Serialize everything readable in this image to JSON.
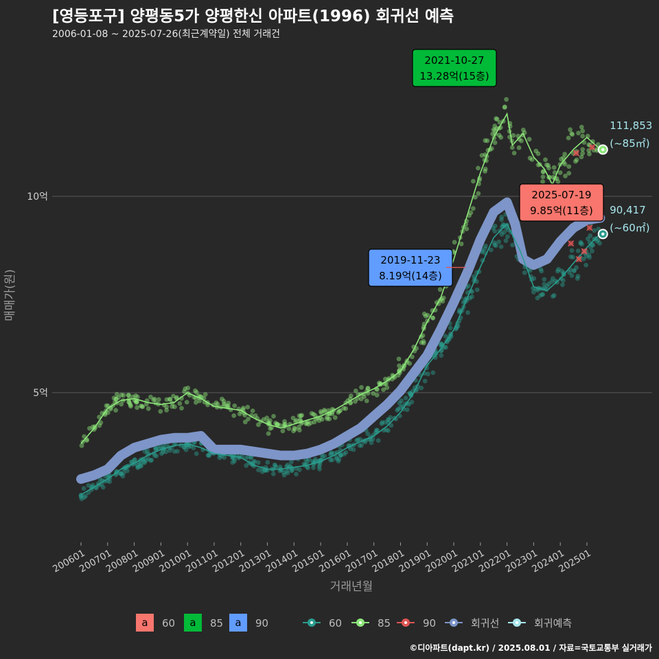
{
  "header": {
    "title": "[영등포구] 양평동5가 양평한신 아파트(1996) 회귀선 예측",
    "subtitle": "2006-01-08 ~ 2025-07-26(최근계약일) 전체 거래건"
  },
  "footer": {
    "source": "©디아파트(dapt.kr) / 2025.08.01 / 자료=국토교통부 실거래가"
  },
  "colors": {
    "background": "#282828",
    "series_60": "#2a9d8f",
    "series_85": "#8ee87a",
    "series_90": "#e05555",
    "regression": "#7d95c8",
    "forecast": "#a8e8ee",
    "label_60": "#f8766d",
    "label_85": "#00ba38",
    "label_90": "#619cff"
  },
  "chart_data": {
    "type": "scatter",
    "xlabel": "거래년월",
    "ylabel": "매매가(원)",
    "ylim": [
      1.5,
      14.2
    ],
    "xlim": [
      2005.55,
      2026.15
    ],
    "grid": true,
    "y_ticks": [
      {
        "value": 5,
        "label": "5억"
      },
      {
        "value": 10,
        "label": "10억"
      }
    ],
    "x_ticks": [
      {
        "value": 2006.0,
        "label": "200601"
      },
      {
        "value": 2007.0,
        "label": "200701"
      },
      {
        "value": 2008.0,
        "label": "200801"
      },
      {
        "value": 2009.0,
        "label": "200901"
      },
      {
        "value": 2010.0,
        "label": "201001"
      },
      {
        "value": 2011.0,
        "label": "201101"
      },
      {
        "value": 2012.0,
        "label": "201201"
      },
      {
        "value": 2013.0,
        "label": "201301"
      },
      {
        "value": 2014.0,
        "label": "201401"
      },
      {
        "value": 2015.0,
        "label": "201501"
      },
      {
        "value": 2016.0,
        "label": "201601"
      },
      {
        "value": 2017.0,
        "label": "201701"
      },
      {
        "value": 2018.0,
        "label": "201801"
      },
      {
        "value": 2019.0,
        "label": "201901"
      },
      {
        "value": 2020.0,
        "label": "202001"
      },
      {
        "value": 2021.0,
        "label": "202101"
      },
      {
        "value": 2022.0,
        "label": "202201"
      },
      {
        "value": 2023.0,
        "label": "202301"
      },
      {
        "value": 2024.0,
        "label": "202401"
      },
      {
        "value": 2025.0,
        "label": "202501"
      }
    ],
    "series": [
      {
        "name": "60",
        "line": [
          [
            2006.0,
            2.4
          ],
          [
            2006.5,
            2.6
          ],
          [
            2007.0,
            2.8
          ],
          [
            2007.5,
            3.05
          ],
          [
            2008.0,
            3.2
          ],
          [
            2008.5,
            3.4
          ],
          [
            2009.0,
            3.55
          ],
          [
            2009.5,
            3.65
          ],
          [
            2010.0,
            3.7
          ],
          [
            2010.5,
            3.6
          ],
          [
            2011.0,
            3.45
          ],
          [
            2011.5,
            3.4
          ],
          [
            2012.0,
            3.35
          ],
          [
            2012.5,
            3.15
          ],
          [
            2013.0,
            3.05
          ],
          [
            2013.5,
            3.05
          ],
          [
            2014.0,
            3.1
          ],
          [
            2014.5,
            3.15
          ],
          [
            2015.0,
            3.25
          ],
          [
            2015.5,
            3.4
          ],
          [
            2016.0,
            3.6
          ],
          [
            2016.5,
            3.75
          ],
          [
            2017.0,
            3.9
          ],
          [
            2017.5,
            4.15
          ],
          [
            2018.0,
            4.5
          ],
          [
            2018.5,
            5.0
          ],
          [
            2019.0,
            5.7
          ],
          [
            2019.5,
            6.1
          ],
          [
            2020.0,
            6.6
          ],
          [
            2020.5,
            7.4
          ],
          [
            2021.0,
            8.2
          ],
          [
            2021.5,
            8.95
          ],
          [
            2022.0,
            9.3
          ],
          [
            2022.5,
            8.6
          ],
          [
            2023.0,
            7.7
          ],
          [
            2023.5,
            7.6
          ],
          [
            2024.0,
            7.9
          ],
          [
            2024.5,
            8.3
          ],
          [
            2025.0,
            8.7
          ],
          [
            2025.5,
            9.05
          ]
        ]
      },
      {
        "name": "85",
        "line": [
          [
            2006.0,
            3.7
          ],
          [
            2006.5,
            4.1
          ],
          [
            2007.0,
            4.6
          ],
          [
            2007.5,
            4.8
          ],
          [
            2008.0,
            4.85
          ],
          [
            2008.5,
            4.75
          ],
          [
            2009.0,
            4.7
          ],
          [
            2009.5,
            4.75
          ],
          [
            2010.0,
            5.0
          ],
          [
            2010.5,
            4.85
          ],
          [
            2011.0,
            4.65
          ],
          [
            2011.5,
            4.6
          ],
          [
            2012.0,
            4.55
          ],
          [
            2012.5,
            4.35
          ],
          [
            2013.0,
            4.2
          ],
          [
            2013.5,
            4.1
          ],
          [
            2014.0,
            4.2
          ],
          [
            2014.5,
            4.3
          ],
          [
            2015.0,
            4.4
          ],
          [
            2015.5,
            4.55
          ],
          [
            2016.0,
            4.75
          ],
          [
            2016.5,
            4.95
          ],
          [
            2017.0,
            5.1
          ],
          [
            2017.5,
            5.3
          ],
          [
            2018.0,
            5.55
          ],
          [
            2018.5,
            6.1
          ],
          [
            2019.0,
            6.8
          ],
          [
            2019.5,
            7.4
          ],
          [
            2020.0,
            8.4
          ],
          [
            2020.5,
            9.5
          ],
          [
            2021.0,
            10.6
          ],
          [
            2021.5,
            11.5
          ],
          [
            2022.0,
            12.1
          ],
          [
            2022.2,
            11.3
          ],
          [
            2022.6,
            11.6
          ],
          [
            2023.0,
            11.0
          ],
          [
            2023.4,
            10.7
          ],
          [
            2023.7,
            10.3
          ],
          [
            2024.0,
            10.8
          ],
          [
            2024.5,
            11.2
          ],
          [
            2025.0,
            11.5
          ],
          [
            2025.5,
            11.2
          ]
        ]
      },
      {
        "name": "회귀선",
        "line": [
          [
            2006.0,
            2.8
          ],
          [
            2006.5,
            2.9
          ],
          [
            2007.0,
            3.05
          ],
          [
            2007.5,
            3.4
          ],
          [
            2008.0,
            3.6
          ],
          [
            2008.5,
            3.7
          ],
          [
            2009.0,
            3.8
          ],
          [
            2009.5,
            3.85
          ],
          [
            2010.0,
            3.85
          ],
          [
            2010.5,
            3.9
          ],
          [
            2011.0,
            3.55
          ],
          [
            2011.5,
            3.55
          ],
          [
            2012.0,
            3.55
          ],
          [
            2012.5,
            3.5
          ],
          [
            2013.0,
            3.45
          ],
          [
            2013.5,
            3.4
          ],
          [
            2014.0,
            3.4
          ],
          [
            2014.5,
            3.45
          ],
          [
            2015.0,
            3.55
          ],
          [
            2015.5,
            3.7
          ],
          [
            2016.0,
            3.9
          ],
          [
            2016.5,
            4.1
          ],
          [
            2017.0,
            4.4
          ],
          [
            2017.5,
            4.7
          ],
          [
            2018.0,
            5.05
          ],
          [
            2018.5,
            5.5
          ],
          [
            2019.0,
            5.95
          ],
          [
            2019.5,
            6.6
          ],
          [
            2020.0,
            7.3
          ],
          [
            2020.5,
            8.05
          ],
          [
            2021.0,
            8.9
          ],
          [
            2021.5,
            9.6
          ],
          [
            2022.0,
            9.85
          ],
          [
            2022.3,
            9.3
          ],
          [
            2022.6,
            8.4
          ],
          [
            2023.0,
            8.25
          ],
          [
            2023.5,
            8.4
          ],
          [
            2024.0,
            8.85
          ],
          [
            2024.5,
            9.2
          ],
          [
            2025.0,
            9.4
          ],
          [
            2025.5,
            9.45
          ]
        ]
      },
      {
        "name": "90",
        "points": [
          [
            2024.4,
            8.8
          ],
          [
            2024.7,
            8.4
          ],
          [
            2024.9,
            8.6
          ],
          [
            2025.1,
            9.2
          ],
          [
            2025.3,
            9.7
          ],
          [
            2024.6,
            11.1
          ],
          [
            2025.2,
            11.25
          ]
        ]
      }
    ],
    "annotations": [
      {
        "label_date": "2021-10-27",
        "label_value": "13.28억(15층)",
        "color": "#00ba38",
        "text_color": "#000000",
        "x": 2021.82,
        "y": 13.28
      },
      {
        "label_date": "2019-11-23",
        "label_value": "8.19억(14층)",
        "color": "#619cff",
        "text_color": "#000000",
        "x": 2019.9,
        "y": 8.19
      },
      {
        "label_date": "2025-07-19",
        "label_value": "9.85억(11층)",
        "color": "#f8766d",
        "text_color": "#000000",
        "x": 2025.55,
        "y": 9.85
      }
    ],
    "forecasts": [
      {
        "value": "111,853",
        "unit": "(~85㎡)",
        "x": 2025.6,
        "y": 11.19,
        "color": "#8ee87a"
      },
      {
        "value": "90,417",
        "unit": "(~60㎡)",
        "x": 2025.6,
        "y": 9.04,
        "color": "#2a9d8f"
      }
    ],
    "legend": {
      "placement": "bottom",
      "fill_keys": [
        {
          "glyph": "a",
          "label": "60",
          "color": "#f8766d"
        },
        {
          "glyph": "a",
          "label": "85",
          "color": "#00ba38"
        },
        {
          "glyph": "a",
          "label": "90",
          "color": "#619cff"
        }
      ],
      "line_keys": [
        {
          "label": "60",
          "color": "#2a9d8f"
        },
        {
          "label": "85",
          "color": "#8ee87a"
        },
        {
          "label": "90",
          "color": "#e05555"
        },
        {
          "label": "회귀선",
          "color": "#7d95c8"
        },
        {
          "label": "회귀예측",
          "color": "#a8e8ee"
        }
      ]
    }
  }
}
